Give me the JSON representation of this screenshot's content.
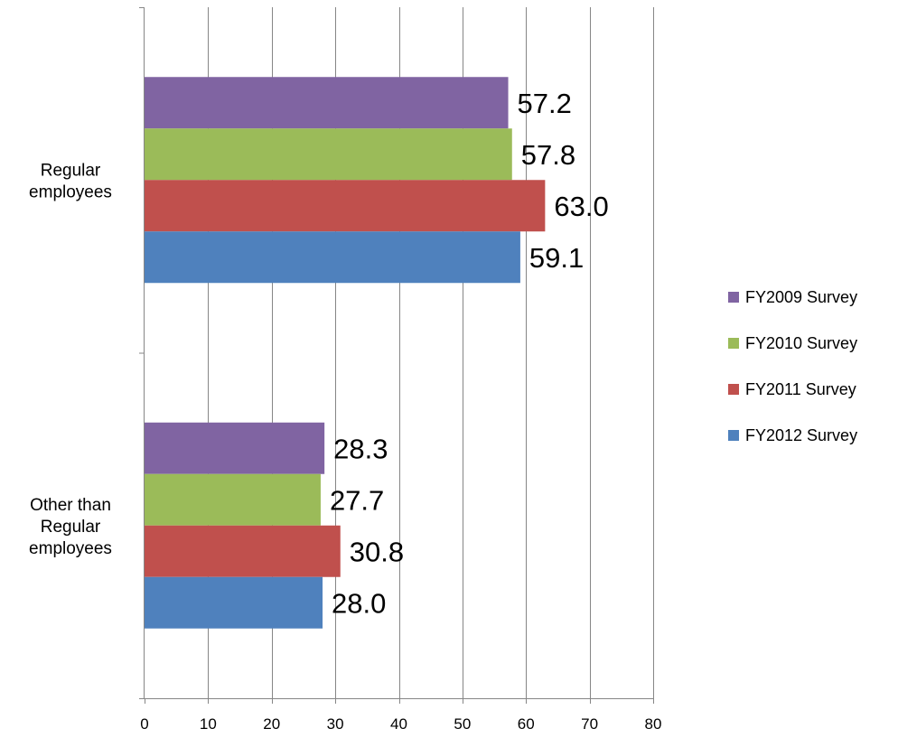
{
  "chart_data": {
    "type": "bar",
    "orientation": "horizontal",
    "categories": [
      "Regular employees",
      "Other than Regular employees"
    ],
    "category_lines": [
      [
        "Regular",
        "employees"
      ],
      [
        "Other than",
        "Regular",
        "employees"
      ]
    ],
    "series": [
      {
        "name": "FY2009 Survey",
        "color": "#8064A2",
        "values": [
          57.2,
          28.3
        ],
        "labels": [
          "57.2",
          "28.3"
        ]
      },
      {
        "name": "FY2010 Survey",
        "color": "#9BBB59",
        "values": [
          57.8,
          27.7
        ],
        "labels": [
          "57.8",
          "27.7"
        ]
      },
      {
        "name": "FY2011 Survey",
        "color": "#C0504D",
        "values": [
          63.0,
          30.8
        ],
        "labels": [
          "63.0",
          "30.8"
        ]
      },
      {
        "name": "FY2012 Survey",
        "color": "#4F81BD",
        "values": [
          59.1,
          28.0
        ],
        "labels": [
          "59.1",
          "28.0"
        ]
      }
    ],
    "xlim": [
      0,
      80
    ],
    "xticks": [
      0,
      10,
      20,
      30,
      40,
      50,
      60,
      70,
      80
    ],
    "xtick_labels": [
      "0",
      "10",
      "20",
      "30",
      "40",
      "50",
      "60",
      "70",
      "80"
    ],
    "title": "",
    "xlabel": "",
    "ylabel": "",
    "grid": "vertical",
    "legend_position": "right"
  }
}
